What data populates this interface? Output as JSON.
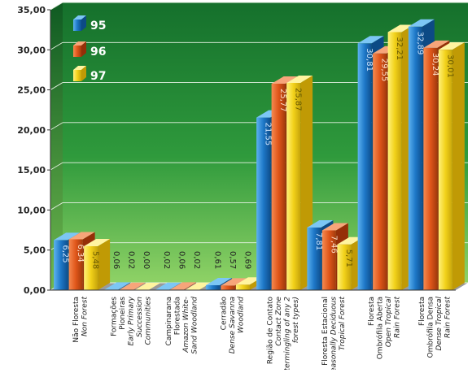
{
  "colors": {
    "series_95": "#1e78c8",
    "series_96": "#e0561a",
    "series_97": "#f2d21a",
    "plot_background": "#1f8a3a",
    "legend_text": "#ffffff"
  },
  "chart_data": {
    "type": "bar",
    "style": "3d-clustered",
    "ylim": [
      0,
      35
    ],
    "yticks": [
      "0,00",
      "5,00",
      "10,00",
      "15,00",
      "20,00",
      "25,00",
      "30,00",
      "35,00"
    ],
    "grid": true,
    "legend_position": "top-left",
    "series": [
      {
        "name": "95",
        "values": [
          6.25,
          0.06,
          0.02,
          0.61,
          21.55,
          7.81,
          30.81,
          32.89
        ],
        "labels": [
          "6,25",
          "0,06",
          "0,02",
          "0,61",
          "21,55",
          "7,81",
          "30,81",
          "32,89"
        ]
      },
      {
        "name": "96",
        "values": [
          6.34,
          0.02,
          0.06,
          0.57,
          25.77,
          7.46,
          29.55,
          30.24
        ],
        "labels": [
          "6,34",
          "0,02",
          "0,06",
          "0,57",
          "25,77",
          "7,46",
          "29,55",
          "30,24"
        ]
      },
      {
        "name": "97",
        "values": [
          5.48,
          0.0,
          0.02,
          0.69,
          25.87,
          5.71,
          32.21,
          30.01
        ],
        "labels": [
          "5,48",
          "0,00",
          "0,02",
          "0,69",
          "25,87",
          "5,71",
          "32,21",
          "30,01"
        ]
      }
    ],
    "categories": [
      {
        "lines": [
          "Não Floresta",
          "Non Forest"
        ]
      },
      {
        "lines": [
          "Formações",
          "Pioneiras",
          "Early Primary",
          "Succession",
          "Communities"
        ]
      },
      {
        "lines": [
          "Campinarana",
          "Florestada",
          "Amazon White-",
          "Sand Woodland"
        ]
      },
      {
        "lines": [
          "Cerradão",
          "Dense Savanna",
          "Woodland"
        ]
      },
      {
        "lines": [
          "Região de Contato",
          "Contact Zone",
          "(Intermingling of any 2",
          "forest types)"
        ]
      },
      {
        "lines": [
          "Floresta Estacional",
          "Seasonally Deciduous",
          "Tropical Forest"
        ]
      },
      {
        "lines": [
          "Floresta",
          "Ombrófila Aberta",
          "Open Tropical",
          "Rain Forest"
        ]
      },
      {
        "lines": [
          "Floresta",
          "Ombrófila Densa",
          "Dense Tropical",
          "Rain Forest"
        ]
      }
    ]
  }
}
